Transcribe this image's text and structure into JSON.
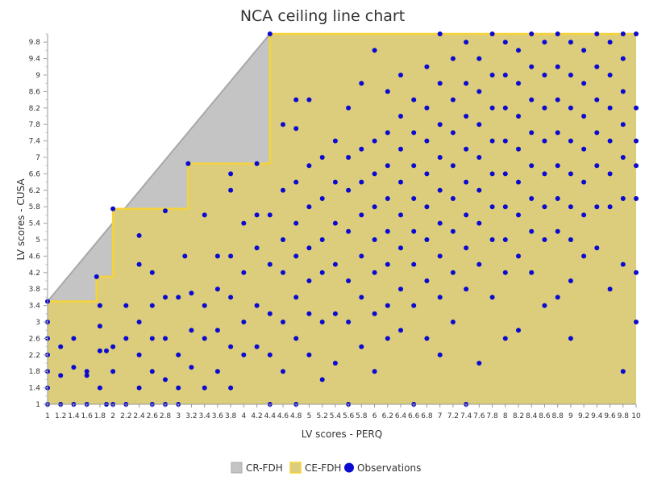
{
  "chart_data": {
    "type": "scatter",
    "title": "NCA ceiling line chart",
    "xlabel": "LV scores - PERQ",
    "ylabel": "LV scores - CUSA",
    "xlim": [
      1,
      10
    ],
    "ylim": [
      1,
      10
    ],
    "x_ticks": [
      1,
      1.2,
      1.4,
      1.6,
      1.8,
      2,
      2.2,
      2.4,
      2.6,
      2.8,
      3,
      3.2,
      3.4,
      3.6,
      3.8,
      4,
      4.2,
      4.4,
      4.6,
      4.8,
      5,
      5.2,
      5.4,
      5.6,
      5.8,
      6,
      6.2,
      6.4,
      6.6,
      6.8,
      7,
      7.2,
      7.4,
      7.6,
      7.8,
      8,
      8.2,
      8.4,
      8.6,
      8.8,
      9,
      9.2,
      9.4,
      9.6,
      9.8,
      10
    ],
    "y_ticks": [
      1,
      1.4,
      1.8,
      2.2,
      2.6,
      3,
      3.4,
      3.8,
      4.2,
      4.6,
      5,
      5.4,
      5.8,
      6.2,
      6.6,
      7,
      7.4,
      7.8,
      8.2,
      8.6,
      9,
      9.4,
      9.8
    ],
    "legend": [
      "CR-FDH",
      "CE-FDH",
      "Observations"
    ],
    "legend_position": "bottom",
    "colors": {
      "cr_fdh_fill": "#c4c4c4",
      "cr_fdh_line": "#a8a8a8",
      "ce_fdh_fill": "#dccd7c",
      "ce_fdh_line": "#f5d33a",
      "observations": "#0a0ad0"
    },
    "series": [
      {
        "name": "CR-FDH",
        "type": "line",
        "points": [
          [
            1,
            3.5
          ],
          [
            4.4,
            10
          ]
        ]
      },
      {
        "name": "CE-FDH",
        "type": "step",
        "points": [
          [
            1,
            3.5
          ],
          [
            1.75,
            3.5
          ],
          [
            1.75,
            4.1
          ],
          [
            2,
            4.1
          ],
          [
            2,
            5.75
          ],
          [
            3.15,
            5.75
          ],
          [
            3.15,
            6.85
          ],
          [
            4.4,
            6.85
          ],
          [
            4.4,
            10
          ],
          [
            10,
            10
          ]
        ]
      },
      {
        "name": "Observations",
        "type": "scatter",
        "points": [
          [
            1,
            3.5
          ],
          [
            1,
            3.0
          ],
          [
            1,
            2.6
          ],
          [
            1,
            2.2
          ],
          [
            1,
            1.8
          ],
          [
            1,
            1.4
          ],
          [
            1,
            1.0
          ],
          [
            1.2,
            2.4
          ],
          [
            1.2,
            1.7
          ],
          [
            1.2,
            1.0
          ],
          [
            1.4,
            2.6
          ],
          [
            1.4,
            1.9
          ],
          [
            1.4,
            1.0
          ],
          [
            1.6,
            1.8
          ],
          [
            1.6,
            1.7
          ],
          [
            1.6,
            1.0
          ],
          [
            1.75,
            4.1
          ],
          [
            1.8,
            3.4
          ],
          [
            1.8,
            2.9
          ],
          [
            1.8,
            2.3
          ],
          [
            1.9,
            2.3
          ],
          [
            1.8,
            1.4
          ],
          [
            1.9,
            1.0
          ],
          [
            2,
            5.75
          ],
          [
            2,
            2.4
          ],
          [
            2,
            1.8
          ],
          [
            2,
            1.0
          ],
          [
            2.2,
            3.4
          ],
          [
            2.2,
            2.6
          ],
          [
            2.2,
            1.0
          ],
          [
            2.4,
            5.1
          ],
          [
            2.4,
            4.4
          ],
          [
            2.4,
            3.0
          ],
          [
            2.4,
            2.2
          ],
          [
            2.4,
            1.4
          ],
          [
            2.6,
            4.2
          ],
          [
            2.6,
            3.4
          ],
          [
            2.6,
            2.6
          ],
          [
            2.6,
            1.8
          ],
          [
            2.6,
            1.0
          ],
          [
            2.8,
            5.7
          ],
          [
            2.8,
            3.6
          ],
          [
            2.8,
            2.6
          ],
          [
            2.8,
            1.6
          ],
          [
            2.8,
            1.0
          ],
          [
            3,
            3.6
          ],
          [
            3,
            2.2
          ],
          [
            3,
            1.4
          ],
          [
            3,
            1.0
          ],
          [
            3.1,
            4.6
          ],
          [
            3.15,
            6.85
          ],
          [
            3.2,
            3.7
          ],
          [
            3.2,
            2.8
          ],
          [
            3.2,
            1.9
          ],
          [
            3.4,
            5.6
          ],
          [
            3.4,
            3.4
          ],
          [
            3.4,
            2.6
          ],
          [
            3.4,
            1.4
          ],
          [
            3.6,
            4.6
          ],
          [
            3.6,
            3.8
          ],
          [
            3.6,
            2.8
          ],
          [
            3.6,
            1.8
          ],
          [
            3.8,
            6.6
          ],
          [
            3.8,
            6.2
          ],
          [
            3.8,
            4.6
          ],
          [
            3.8,
            3.6
          ],
          [
            3.8,
            2.4
          ],
          [
            3.8,
            1.4
          ],
          [
            4,
            5.4
          ],
          [
            4,
            4.2
          ],
          [
            4,
            3.0
          ],
          [
            4,
            2.2
          ],
          [
            4.2,
            6.85
          ],
          [
            4.2,
            5.6
          ],
          [
            4.2,
            4.8
          ],
          [
            4.2,
            3.4
          ],
          [
            4.2,
            2.4
          ],
          [
            4.4,
            10
          ],
          [
            4.4,
            5.6
          ],
          [
            4.4,
            4.4
          ],
          [
            4.4,
            3.2
          ],
          [
            4.4,
            2.2
          ],
          [
            4.4,
            1.0
          ],
          [
            4.6,
            7.8
          ],
          [
            4.6,
            6.2
          ],
          [
            4.6,
            5.0
          ],
          [
            4.6,
            4.2
          ],
          [
            4.6,
            3.0
          ],
          [
            4.6,
            1.8
          ],
          [
            4.8,
            8.4
          ],
          [
            4.8,
            7.7
          ],
          [
            4.8,
            6.4
          ],
          [
            4.8,
            5.4
          ],
          [
            4.8,
            4.6
          ],
          [
            4.8,
            3.6
          ],
          [
            4.8,
            2.6
          ],
          [
            4.8,
            1.0
          ],
          [
            5,
            8.4
          ],
          [
            5,
            6.8
          ],
          [
            5,
            5.8
          ],
          [
            5,
            4.8
          ],
          [
            5,
            4.0
          ],
          [
            5,
            3.2
          ],
          [
            5,
            2.2
          ],
          [
            5.2,
            7.0
          ],
          [
            5.2,
            6.0
          ],
          [
            5.2,
            5.0
          ],
          [
            5.2,
            4.2
          ],
          [
            5.2,
            3.0
          ],
          [
            5.2,
            1.6
          ],
          [
            5.4,
            7.4
          ],
          [
            5.4,
            6.4
          ],
          [
            5.4,
            5.4
          ],
          [
            5.4,
            4.4
          ],
          [
            5.4,
            3.2
          ],
          [
            5.4,
            2.0
          ],
          [
            5.6,
            8.2
          ],
          [
            5.6,
            7.0
          ],
          [
            5.6,
            6.2
          ],
          [
            5.6,
            5.2
          ],
          [
            5.6,
            4.0
          ],
          [
            5.6,
            3.0
          ],
          [
            5.6,
            1.0
          ],
          [
            5.8,
            8.8
          ],
          [
            5.8,
            7.2
          ],
          [
            5.8,
            6.4
          ],
          [
            5.8,
            5.6
          ],
          [
            5.8,
            4.6
          ],
          [
            5.8,
            3.6
          ],
          [
            5.8,
            2.4
          ],
          [
            6,
            9.6
          ],
          [
            6,
            7.4
          ],
          [
            6,
            6.6
          ],
          [
            6,
            5.8
          ],
          [
            6,
            5.0
          ],
          [
            6,
            4.2
          ],
          [
            6,
            3.2
          ],
          [
            6,
            1.8
          ],
          [
            6.2,
            8.6
          ],
          [
            6.2,
            7.6
          ],
          [
            6.2,
            6.8
          ],
          [
            6.2,
            6.0
          ],
          [
            6.2,
            5.2
          ],
          [
            6.2,
            4.4
          ],
          [
            6.2,
            3.4
          ],
          [
            6.2,
            2.6
          ],
          [
            6.4,
            9.0
          ],
          [
            6.4,
            8.0
          ],
          [
            6.4,
            7.2
          ],
          [
            6.4,
            6.4
          ],
          [
            6.4,
            5.6
          ],
          [
            6.4,
            4.8
          ],
          [
            6.4,
            3.8
          ],
          [
            6.4,
            2.8
          ],
          [
            6.6,
            8.4
          ],
          [
            6.6,
            7.6
          ],
          [
            6.6,
            6.8
          ],
          [
            6.6,
            6.0
          ],
          [
            6.6,
            5.2
          ],
          [
            6.6,
            4.4
          ],
          [
            6.6,
            3.4
          ],
          [
            6.6,
            1.0
          ],
          [
            6.8,
            9.2
          ],
          [
            6.8,
            8.2
          ],
          [
            6.8,
            7.4
          ],
          [
            6.8,
            6.6
          ],
          [
            6.8,
            5.8
          ],
          [
            6.8,
            5.0
          ],
          [
            6.8,
            4.0
          ],
          [
            6.8,
            2.6
          ],
          [
            7,
            10
          ],
          [
            7,
            8.8
          ],
          [
            7,
            7.8
          ],
          [
            7,
            7.0
          ],
          [
            7,
            6.2
          ],
          [
            7,
            5.4
          ],
          [
            7,
            4.6
          ],
          [
            7,
            3.6
          ],
          [
            7,
            2.2
          ],
          [
            7.2,
            9.4
          ],
          [
            7.2,
            8.4
          ],
          [
            7.2,
            7.6
          ],
          [
            7.2,
            6.8
          ],
          [
            7.2,
            6.0
          ],
          [
            7.2,
            5.2
          ],
          [
            7.2,
            4.2
          ],
          [
            7.2,
            3.0
          ],
          [
            7.4,
            9.8
          ],
          [
            7.4,
            8.8
          ],
          [
            7.4,
            8.0
          ],
          [
            7.4,
            7.2
          ],
          [
            7.4,
            6.4
          ],
          [
            7.4,
            5.6
          ],
          [
            7.4,
            4.8
          ],
          [
            7.4,
            3.8
          ],
          [
            7.4,
            1.0
          ],
          [
            7.6,
            9.4
          ],
          [
            7.6,
            8.6
          ],
          [
            7.6,
            7.8
          ],
          [
            7.6,
            7.0
          ],
          [
            7.6,
            6.2
          ],
          [
            7.6,
            5.4
          ],
          [
            7.6,
            4.4
          ],
          [
            7.6,
            2.0
          ],
          [
            7.8,
            10
          ],
          [
            7.8,
            9.0
          ],
          [
            7.8,
            8.2
          ],
          [
            7.8,
            7.4
          ],
          [
            7.8,
            6.6
          ],
          [
            7.8,
            5.8
          ],
          [
            7.8,
            5.0
          ],
          [
            7.8,
            3.6
          ],
          [
            8,
            9.8
          ],
          [
            8,
            9.0
          ],
          [
            8,
            8.2
          ],
          [
            8,
            7.4
          ],
          [
            8,
            6.6
          ],
          [
            8,
            5.8
          ],
          [
            8,
            5.0
          ],
          [
            8,
            4.2
          ],
          [
            8,
            2.6
          ],
          [
            8.2,
            9.6
          ],
          [
            8.2,
            8.8
          ],
          [
            8.2,
            8.0
          ],
          [
            8.2,
            7.2
          ],
          [
            8.2,
            6.4
          ],
          [
            8.2,
            5.6
          ],
          [
            8.2,
            4.6
          ],
          [
            8.2,
            2.8
          ],
          [
            8.4,
            10
          ],
          [
            8.4,
            9.2
          ],
          [
            8.4,
            8.4
          ],
          [
            8.4,
            7.6
          ],
          [
            8.4,
            6.8
          ],
          [
            8.4,
            6.0
          ],
          [
            8.4,
            5.2
          ],
          [
            8.4,
            4.2
          ],
          [
            8.6,
            9.8
          ],
          [
            8.6,
            9.0
          ],
          [
            8.6,
            8.2
          ],
          [
            8.6,
            7.4
          ],
          [
            8.6,
            6.6
          ],
          [
            8.6,
            5.8
          ],
          [
            8.6,
            5.0
          ],
          [
            8.6,
            3.4
          ],
          [
            8.8,
            10
          ],
          [
            8.8,
            9.2
          ],
          [
            8.8,
            8.4
          ],
          [
            8.8,
            7.6
          ],
          [
            8.8,
            6.8
          ],
          [
            8.8,
            6.0
          ],
          [
            8.8,
            5.2
          ],
          [
            8.8,
            3.6
          ],
          [
            9,
            9.8
          ],
          [
            9,
            9.0
          ],
          [
            9,
            8.2
          ],
          [
            9,
            7.4
          ],
          [
            9,
            6.6
          ],
          [
            9,
            5.8
          ],
          [
            9,
            5.0
          ],
          [
            9,
            4.0
          ],
          [
            9,
            2.6
          ],
          [
            9.2,
            9.6
          ],
          [
            9.2,
            8.8
          ],
          [
            9.2,
            8.0
          ],
          [
            9.2,
            7.2
          ],
          [
            9.2,
            6.4
          ],
          [
            9.2,
            5.6
          ],
          [
            9.2,
            4.6
          ],
          [
            9.4,
            10
          ],
          [
            9.4,
            9.2
          ],
          [
            9.4,
            8.4
          ],
          [
            9.4,
            7.6
          ],
          [
            9.4,
            6.8
          ],
          [
            9.4,
            5.8
          ],
          [
            9.4,
            4.8
          ],
          [
            9.6,
            9.8
          ],
          [
            9.6,
            9.0
          ],
          [
            9.6,
            8.2
          ],
          [
            9.6,
            7.4
          ],
          [
            9.6,
            6.6
          ],
          [
            9.6,
            5.8
          ],
          [
            9.6,
            3.8
          ],
          [
            9.8,
            10
          ],
          [
            9.8,
            9.4
          ],
          [
            9.8,
            8.6
          ],
          [
            9.8,
            7.8
          ],
          [
            9.8,
            7.0
          ],
          [
            9.8,
            6.0
          ],
          [
            9.8,
            4.4
          ],
          [
            9.8,
            1.8
          ],
          [
            10,
            10
          ],
          [
            10,
            8.2
          ],
          [
            10,
            7.4
          ],
          [
            10,
            6.8
          ],
          [
            10,
            6.0
          ],
          [
            10,
            4.2
          ],
          [
            10,
            3.0
          ]
        ]
      }
    ]
  }
}
